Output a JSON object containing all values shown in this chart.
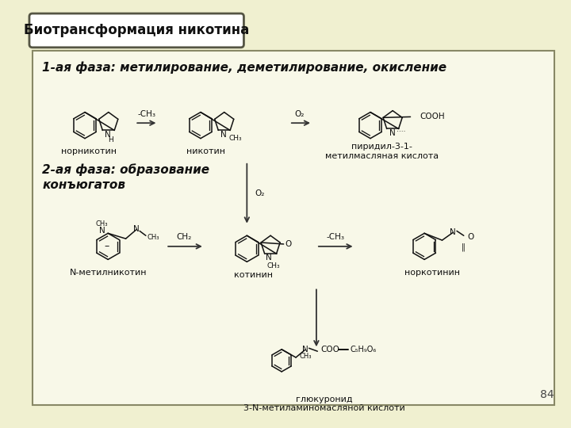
{
  "bg_color": "#f0f0d0",
  "title_box_color": "#ffffff",
  "title_text": "Биотрансформация никотина",
  "main_box_color": "#f8f8e8",
  "phase1_header": "1-ая фаза: метилирование, деметилирование, окисление",
  "phase2_header": "2-ая фаза: образование\nконъюгатов",
  "label_nornicotine": "норникотин",
  "label_nicotine": "никотин",
  "label_pyridyl": "пиридил-3-1-\nметилмасляная кислота",
  "label_n_methylnicotine": "N-метилникотин",
  "label_cotinine": "котинин",
  "label_norcotinine": "норкотинин",
  "label_glucuronide": "глюкуронид\n3-N-метиламиномасляной кислоти",
  "page_number": "84",
  "col": "#111111",
  "lw": 1.1
}
